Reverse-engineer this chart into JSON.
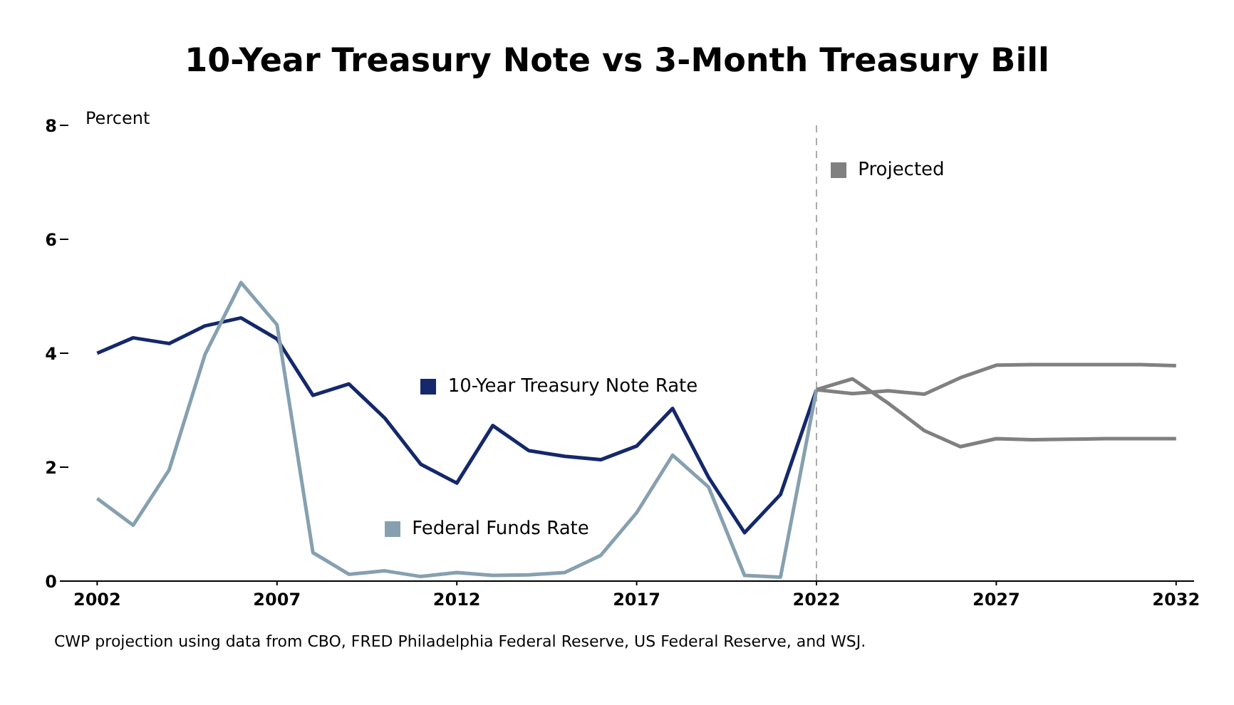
{
  "chart_data": {
    "type": "line",
    "title": "10-Year Treasury Note vs 3-Month Treasury Bill",
    "ylabel": "Percent",
    "xlim": [
      2001.2,
      2032.5
    ],
    "xticks": [
      2002,
      2007,
      2012,
      2017,
      2022,
      2027,
      2032
    ],
    "ylim": [
      0,
      8
    ],
    "yticks": [
      0,
      2,
      4,
      6,
      8
    ],
    "grid": false,
    "legend": "center",
    "line_style": "solid",
    "marker": "none",
    "series": [
      {
        "name": "10-Year Treasury Note Rate",
        "color": "#14286b",
        "x": [
          2002,
          2003,
          2004,
          2005,
          2006,
          2007,
          2008,
          2009,
          2010,
          2011,
          2012,
          2013,
          2014,
          2015,
          2016,
          2017,
          2018,
          2019,
          2020,
          2021,
          2022
        ],
        "values": [
          4.0,
          4.27,
          4.17,
          4.48,
          4.62,
          4.25,
          3.26,
          3.46,
          2.86,
          2.05,
          1.72,
          2.73,
          2.29,
          2.19,
          2.13,
          2.37,
          3.03,
          1.82,
          0.85,
          1.52,
          3.36
        ]
      },
      {
        "name": "Federal Funds Rate",
        "color": "#86a0b0",
        "x": [
          2002,
          2003,
          2004,
          2005,
          2006,
          2007,
          2008,
          2009,
          2010,
          2011,
          2012,
          2013,
          2014,
          2015,
          2016,
          2017,
          2018,
          2019,
          2020,
          2021,
          2022
        ],
        "values": [
          1.45,
          0.98,
          1.95,
          3.98,
          5.24,
          4.5,
          0.5,
          0.12,
          0.18,
          0.08,
          0.15,
          0.1,
          0.11,
          0.15,
          0.45,
          1.2,
          2.21,
          1.65,
          0.1,
          0.07,
          3.36
        ]
      },
      {
        "name": "Projected",
        "color": "#808080",
        "x": [
          2022,
          2023,
          2024,
          2025,
          2026,
          2027,
          2028,
          2029,
          2030,
          2031,
          2032
        ],
        "values": [
          3.36,
          3.29,
          3.34,
          3.28,
          3.57,
          3.79,
          3.8,
          3.8,
          3.8,
          3.8,
          3.78
        ]
      },
      {
        "color": "#808080",
        "x": [
          2022,
          2023,
          2024,
          2025,
          2026,
          2027,
          2028,
          2029,
          2030,
          2031,
          2032
        ],
        "values": [
          3.36,
          3.55,
          3.12,
          2.64,
          2.36,
          2.5,
          2.48,
          2.49,
          2.5,
          2.5,
          2.5
        ]
      }
    ],
    "ref_lines": [
      {
        "axis": "x",
        "value": 2022,
        "color": "#aaaaaa",
        "line_style": "dashed"
      }
    ],
    "annotations": [
      "CWP projection using data from CBO, FRED Philadelphia Federal Reserve, US Federal Reserve, and WSJ."
    ]
  }
}
